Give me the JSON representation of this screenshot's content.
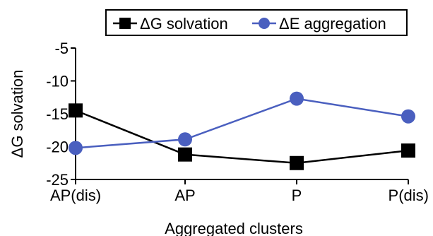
{
  "chart_data": {
    "type": "line",
    "categories": [
      "AP(dis)",
      "AP",
      "P",
      "P(dis)"
    ],
    "series": [
      {
        "name": "ΔG solvation",
        "values": [
          -14.5,
          -21.2,
          -22.5,
          -20.6
        ],
        "color": "#000000",
        "marker": "square"
      },
      {
        "name": "ΔE aggregation",
        "values": [
          -20.2,
          -18.9,
          -12.7,
          -15.4
        ],
        "color": "#4a5fbf",
        "marker": "circle"
      }
    ],
    "ylim": [
      -25,
      -5
    ],
    "yticks": [
      "-5",
      "-10",
      "-15",
      "-20",
      "-25"
    ],
    "ytick_values": [
      -5,
      -10,
      -15,
      -20,
      -25
    ],
    "xlabel": "Aggregated clusters",
    "ylabel": "ΔG solvation",
    "grid": false,
    "legend_position": "top"
  }
}
